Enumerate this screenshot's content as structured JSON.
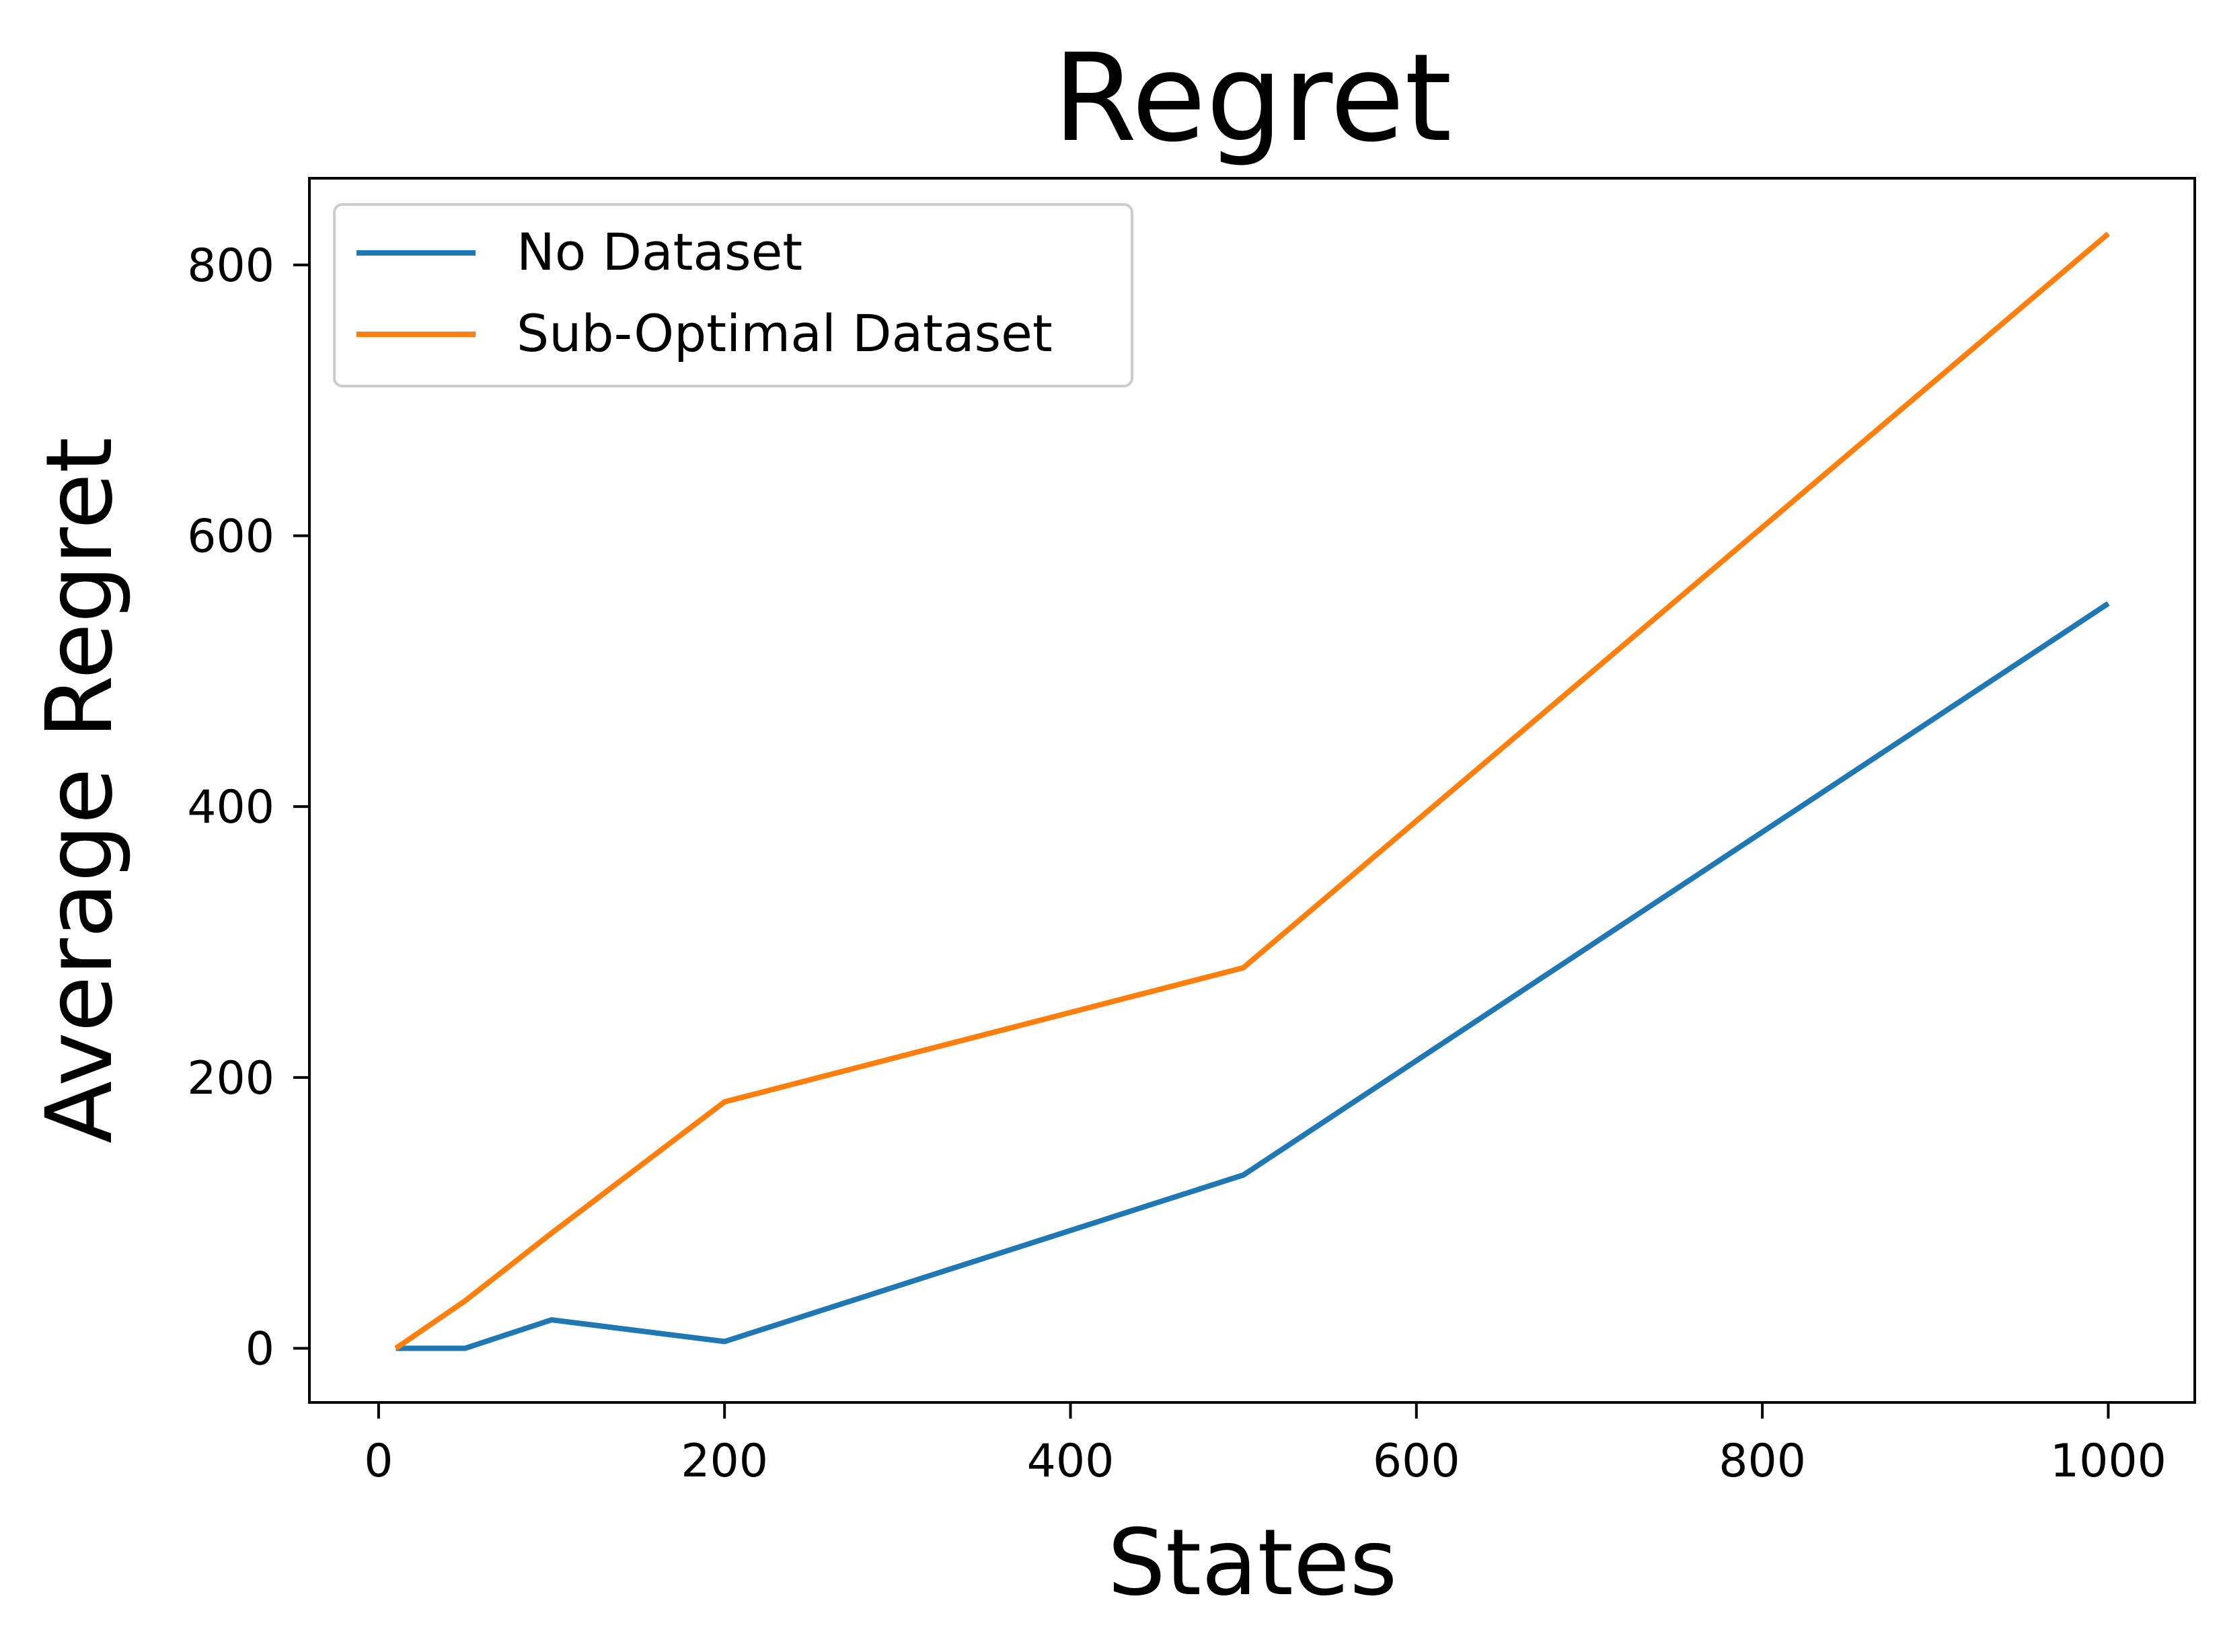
{
  "chart_data": {
    "type": "line",
    "title": "Regret",
    "xlabel": "States",
    "ylabel": "Average Regret",
    "x": [
      10,
      50,
      100,
      200,
      500,
      1000
    ],
    "series": [
      {
        "name": "No Dataset",
        "color": "#1f77b4",
        "values": [
          0,
          0,
          21,
          5,
          128,
          550
        ]
      },
      {
        "name": "Sub-Optimal Dataset",
        "color": "#ff7f0e",
        "values": [
          0,
          35,
          85,
          182,
          281,
          823
        ]
      }
    ],
    "xlim": [
      -40,
      1050
    ],
    "ylim": [
      -40,
      864
    ],
    "xticks": [
      0,
      200,
      400,
      600,
      800,
      1000
    ],
    "xtick_labels": [
      "0",
      "200",
      "400",
      "600",
      "800",
      "1000"
    ],
    "yticks": [
      0,
      200,
      400,
      600,
      800
    ],
    "ytick_labels": [
      "0",
      "200",
      "400",
      "600",
      "800"
    ],
    "grid": false,
    "legend_position": "top-left"
  }
}
